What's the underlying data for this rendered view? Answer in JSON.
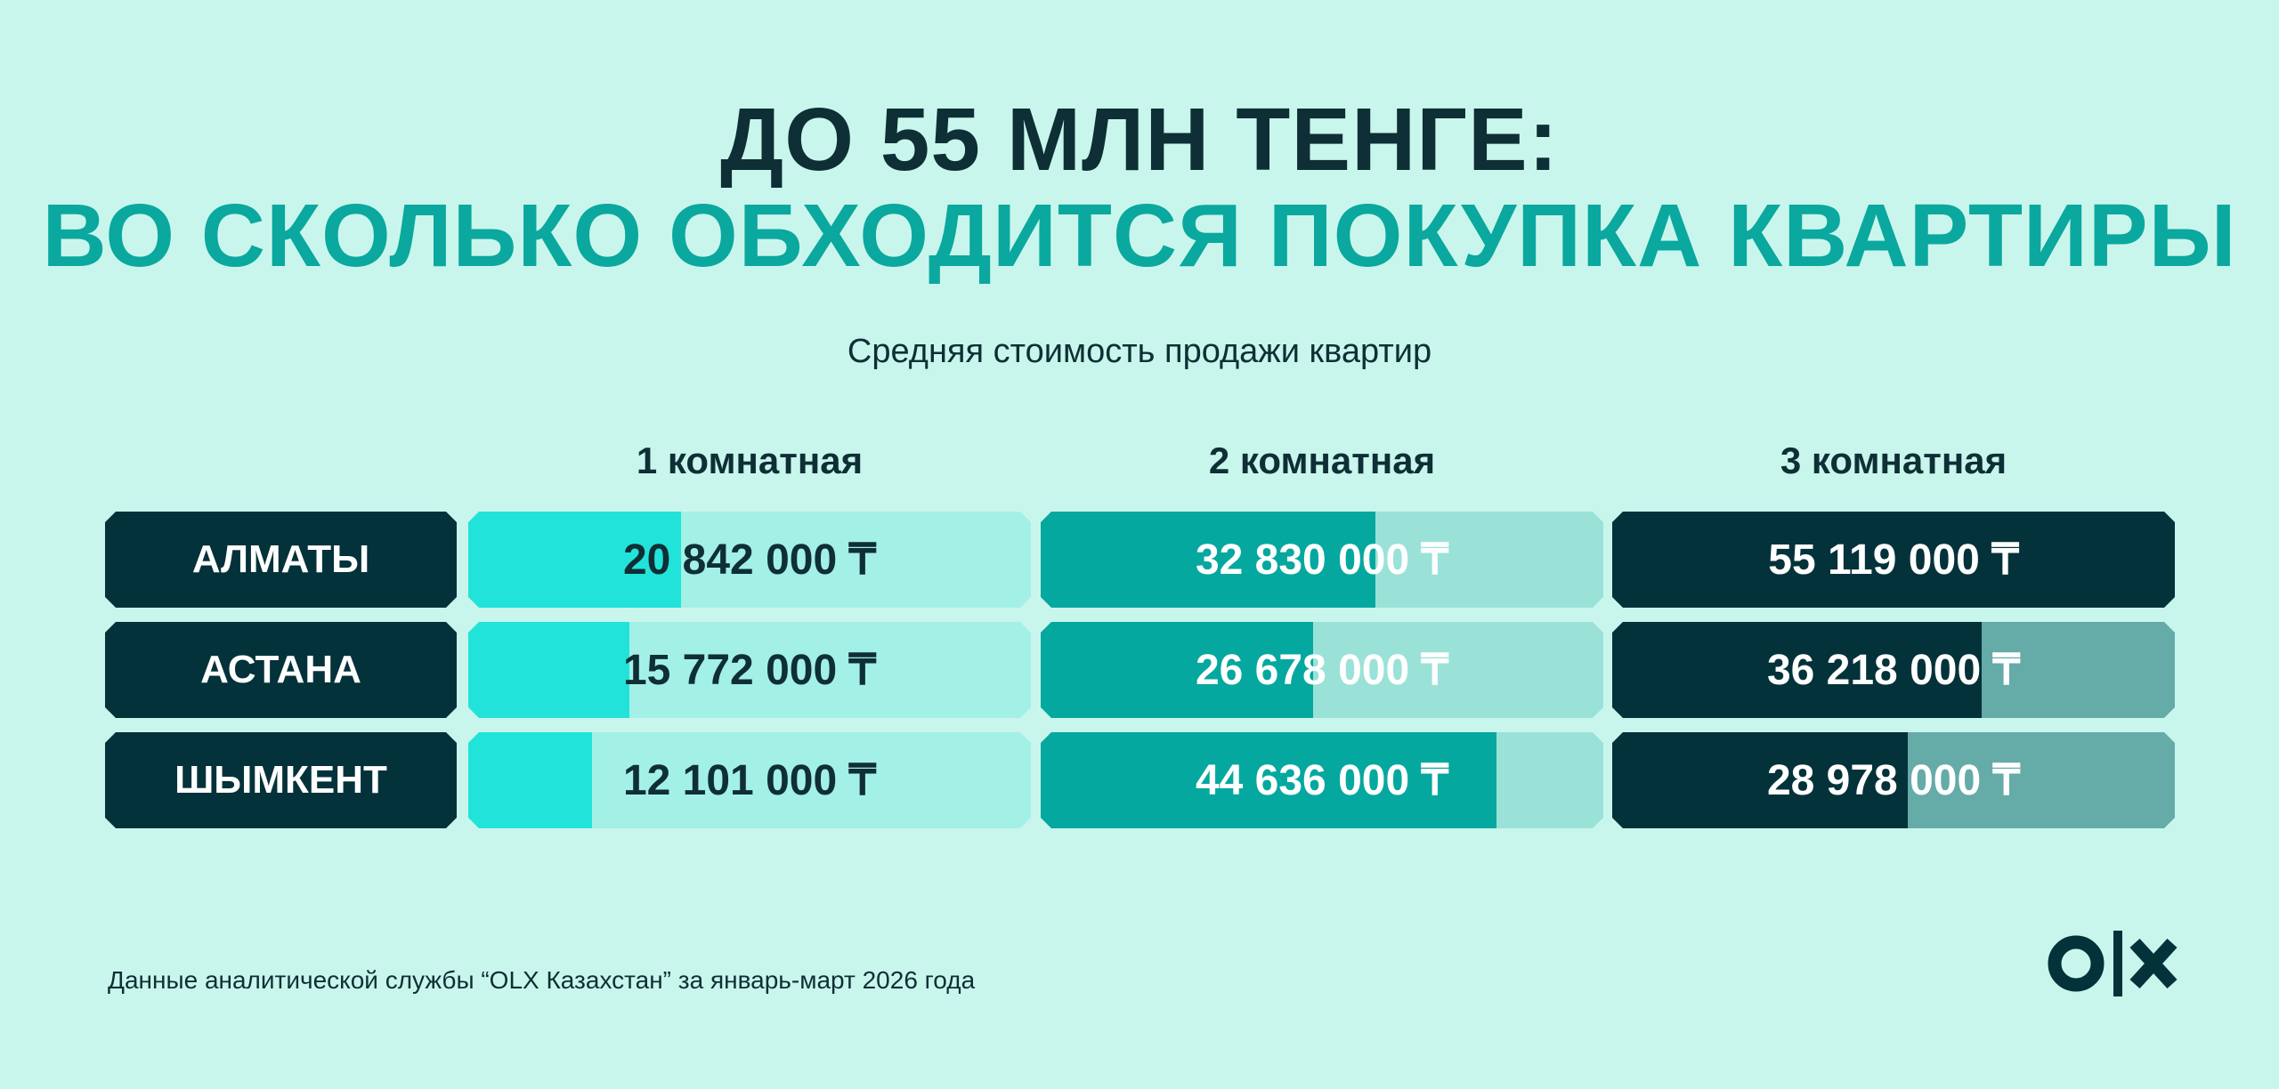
{
  "chart_data": {
    "type": "bar",
    "title": [
      "ДО 55 МЛН ТЕНГЕ:",
      "ВО СКОЛЬКО ОБХОДИТСЯ ПОКУПКА КВАРТИРЫ"
    ],
    "subtitle": "Средняя стоимость продажи квартир",
    "categories": [
      "АЛМАТЫ",
      "АСТАНА",
      "ШЫМКЕНТ"
    ],
    "series": [
      {
        "name": "1 комнатная",
        "color": "#22e3d9",
        "track_color": "#a3f0e6",
        "label_color": "#0e2f35",
        "values": [
          20842000,
          15772000,
          12101000
        ],
        "value_labels": [
          "20 842 000 ₸",
          "15 772 000 ₸",
          "12 101 000 ₸"
        ]
      },
      {
        "name": "2 комнатная",
        "color": "#05a89f",
        "track_color": "#9ae2d8",
        "label_color": "#ffffff",
        "values": [
          32830000,
          26678000,
          44636000
        ],
        "value_labels": [
          "32 830 000 ₸",
          "26 678 000 ₸",
          "44 636 000 ₸"
        ]
      },
      {
        "name": "3 комнатная",
        "color": "#04323a",
        "track_color": "#65aba8",
        "label_color": "#ffffff",
        "values": [
          55119000,
          36218000,
          28978000
        ],
        "value_labels": [
          "55 119 000 ₸",
          "36 218 000 ₸",
          "28 978 000 ₸"
        ]
      }
    ],
    "xlim": [
      0,
      55119000
    ],
    "note": "Данные аналитической службы “OLX Казахстан” за январь-март 2026 года"
  }
}
